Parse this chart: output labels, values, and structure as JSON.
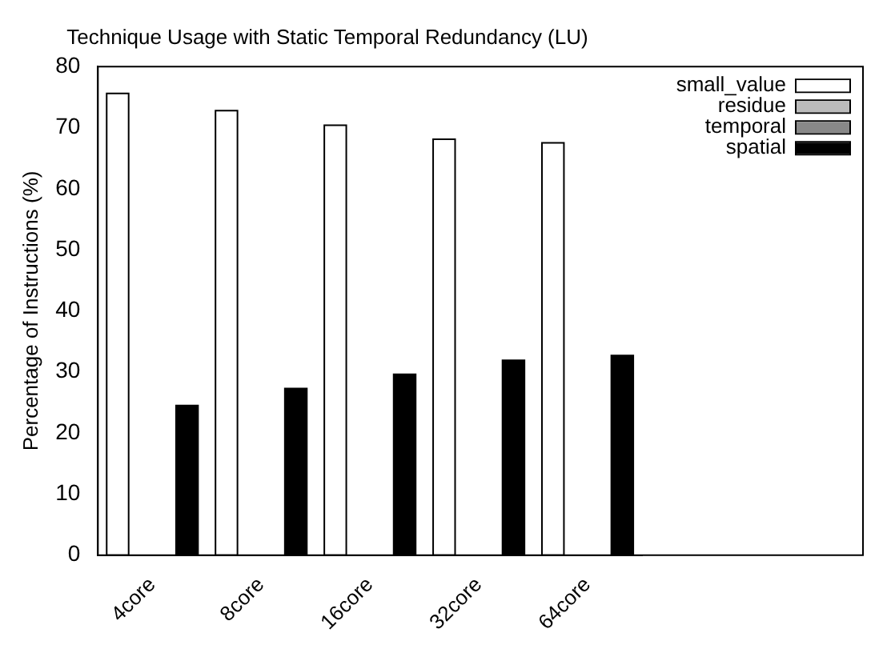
{
  "chart_data": {
    "type": "bar",
    "title": "Technique Usage with Static Temporal Redundancy (LU)",
    "ylabel": "Percentage of Instructions (%)",
    "categories": [
      "4core",
      "8core",
      "16core",
      "32core",
      "64core"
    ],
    "series": [
      {
        "name": "small_value",
        "color": "#ffffff",
        "values": [
          75.6,
          72.8,
          70.4,
          68.1,
          67.5
        ]
      },
      {
        "name": "residue",
        "color": "#bbbbbb",
        "values": [
          0,
          0,
          0,
          0,
          0
        ]
      },
      {
        "name": "temporal",
        "color": "#888888",
        "values": [
          0,
          0,
          0,
          0,
          0
        ]
      },
      {
        "name": "spatial",
        "color": "#000000",
        "values": [
          24.5,
          27.3,
          29.6,
          31.9,
          32.7
        ]
      }
    ],
    "ylim": [
      0,
      80
    ],
    "yticks": [
      0,
      10,
      20,
      30,
      40,
      50,
      60,
      70,
      80
    ],
    "grid": false,
    "legend": "top right"
  }
}
